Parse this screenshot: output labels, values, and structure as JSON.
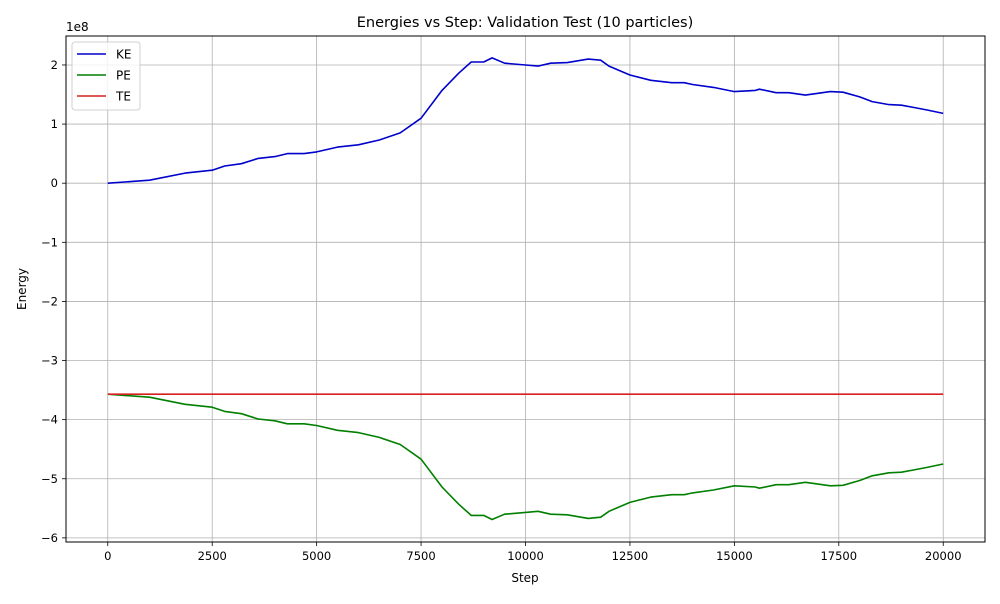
{
  "chart_data": {
    "type": "line",
    "title": "Energies vs Step: Validation Test (10 particles)",
    "xlabel": "Step",
    "ylabel": "Energy",
    "y_offset_label": "1e8",
    "xlim": [
      -1000,
      21000
    ],
    "ylim": [
      -6.07,
      2.49
    ],
    "x_ticks": [
      0,
      2500,
      5000,
      7500,
      10000,
      12500,
      15000,
      17500,
      20000
    ],
    "x_tick_labels": [
      "0",
      "2500",
      "5000",
      "7500",
      "10000",
      "12500",
      "15000",
      "17500",
      "20000"
    ],
    "y_ticks": [
      -6,
      -5,
      -4,
      -3,
      -2,
      -1,
      0,
      1,
      2
    ],
    "y_tick_labels": [
      "−6",
      "−5",
      "−4",
      "−3",
      "−2",
      "−1",
      "0",
      "1",
      "2"
    ],
    "grid": true,
    "legend_placement": "top-left",
    "series": [
      {
        "name": "KE",
        "color": "#0000cc",
        "x": [
          0,
          1000,
          1850,
          2500,
          2800,
          3200,
          3600,
          4000,
          4300,
          4700,
          5000,
          5500,
          6000,
          6500,
          7000,
          7500,
          8000,
          8400,
          8700,
          9000,
          9200,
          9500,
          10000,
          10300,
          10600,
          11000,
          11500,
          11800,
          12000,
          12500,
          13000,
          13500,
          13800,
          14000,
          14500,
          15000,
          15500,
          15600,
          16000,
          16300,
          16700,
          17000,
          17300,
          17600,
          18000,
          18300,
          18700,
          19000,
          19300,
          19600,
          20000
        ],
        "values": [
          0,
          0.05,
          0.17,
          0.22,
          0.29,
          0.33,
          0.42,
          0.45,
          0.5,
          0.5,
          0.53,
          0.61,
          0.65,
          0.73,
          0.85,
          1.1,
          1.57,
          1.86,
          2.05,
          2.05,
          2.12,
          2.03,
          2.0,
          1.98,
          2.03,
          2.04,
          2.1,
          2.08,
          1.98,
          1.83,
          1.74,
          1.7,
          1.7,
          1.67,
          1.62,
          1.55,
          1.57,
          1.59,
          1.53,
          1.53,
          1.49,
          1.52,
          1.55,
          1.54,
          1.46,
          1.38,
          1.33,
          1.32,
          1.28,
          1.24,
          1.18
        ]
      },
      {
        "name": "PE",
        "color": "#007f00",
        "x": [
          0,
          1000,
          1850,
          2500,
          2800,
          3200,
          3600,
          4000,
          4300,
          4700,
          5000,
          5500,
          6000,
          6500,
          7000,
          7500,
          8000,
          8400,
          8700,
          9000,
          9200,
          9500,
          10000,
          10300,
          10600,
          11000,
          11500,
          11800,
          12000,
          12500,
          13000,
          13500,
          13800,
          14000,
          14500,
          15000,
          15500,
          15600,
          16000,
          16300,
          16700,
          17000,
          17300,
          17600,
          18000,
          18300,
          18700,
          19000,
          19300,
          19600,
          20000
        ],
        "values": [
          -3.57,
          -3.62,
          -3.74,
          -3.79,
          -3.86,
          -3.9,
          -3.99,
          -4.02,
          -4.07,
          -4.07,
          -4.1,
          -4.18,
          -4.22,
          -4.3,
          -4.42,
          -4.67,
          -5.14,
          -5.43,
          -5.62,
          -5.62,
          -5.69,
          -5.6,
          -5.57,
          -5.55,
          -5.6,
          -5.61,
          -5.67,
          -5.65,
          -5.55,
          -5.4,
          -5.31,
          -5.27,
          -5.27,
          -5.24,
          -5.19,
          -5.12,
          -5.14,
          -5.16,
          -5.1,
          -5.1,
          -5.06,
          -5.09,
          -5.12,
          -5.11,
          -5.03,
          -4.95,
          -4.9,
          -4.89,
          -4.85,
          -4.81,
          -4.75
        ]
      },
      {
        "name": "TE",
        "color": "#d62020",
        "x": [
          0,
          20000
        ],
        "values": [
          -3.57,
          -3.57
        ]
      }
    ]
  }
}
